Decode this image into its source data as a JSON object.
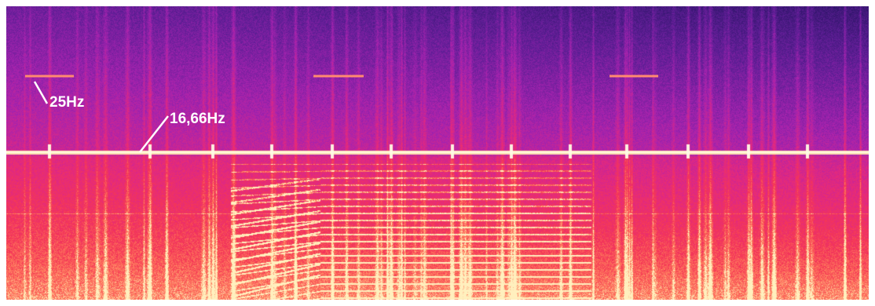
{
  "chart_data": {
    "type": "heatmap",
    "annotations": [
      {
        "text": "25Hz"
      },
      {
        "text": "16,66Hz"
      }
    ]
  },
  "colors": {
    "background_low": "#2a1a6e",
    "background_mid": "#a81fb0",
    "background_high": "#ee2d64",
    "line_hot": "#fff0b0"
  }
}
